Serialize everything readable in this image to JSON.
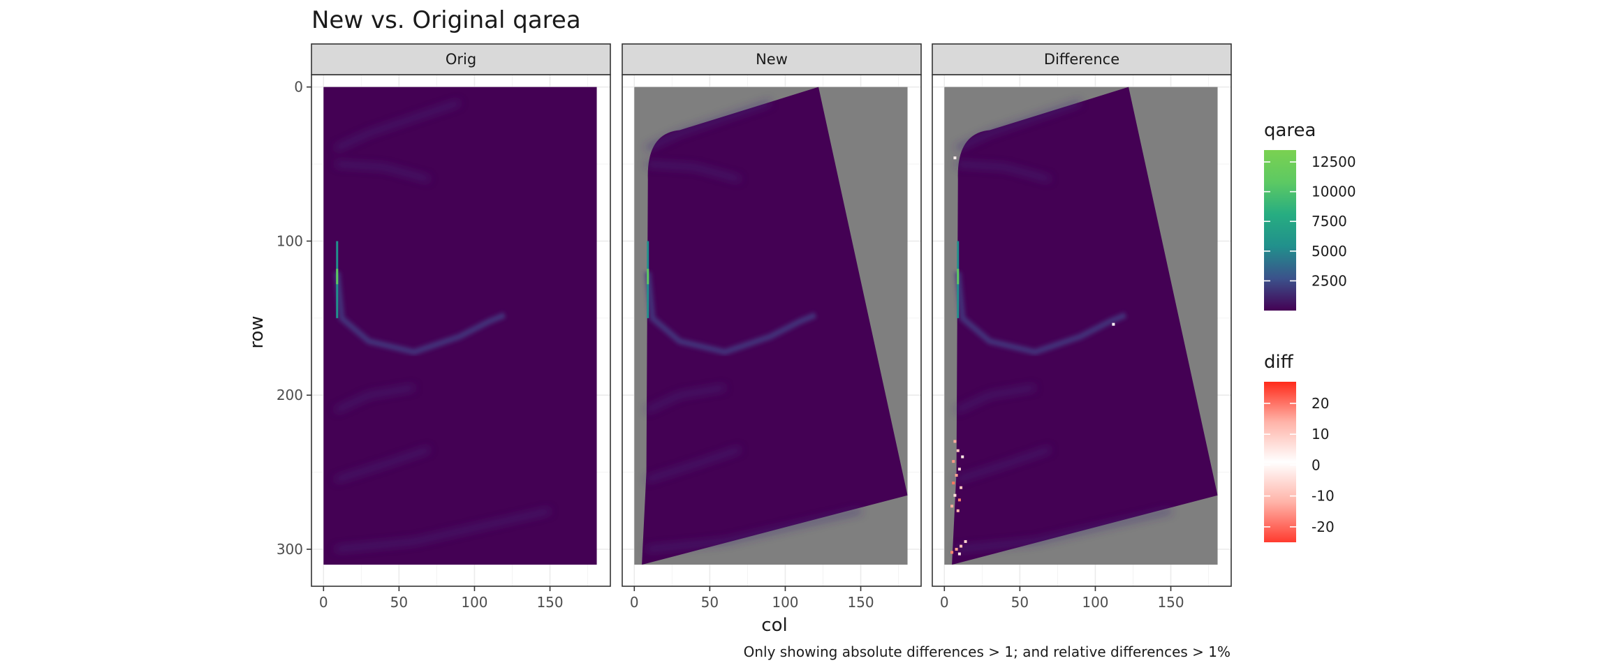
{
  "title": "New vs. Original qarea",
  "caption": "Only showing absolute differences > 1; and relative differences > 1%",
  "chart_data": {
    "type": "heatmap",
    "title": "New vs. Original qarea",
    "xlabel": "col",
    "ylabel": "row",
    "xlim": [
      -8,
      190
    ],
    "ylim": [
      -8,
      324
    ],
    "y_reversed": true,
    "x_ticks": [
      0,
      50,
      100,
      150
    ],
    "y_ticks": [
      0,
      100,
      200,
      300
    ],
    "x_tick_labels": [
      "0",
      "50",
      "100",
      "150"
    ],
    "y_tick_labels": [
      "0",
      "100",
      "200",
      "300"
    ],
    "grid": true,
    "panels": [
      {
        "label": "Orig"
      },
      {
        "label": "New"
      },
      {
        "label": "Difference"
      }
    ],
    "grid_extent": {
      "col_min": 0,
      "col_max": 181,
      "row_min": 0,
      "row_max": 310
    },
    "rotated_footprint": [
      [
        122,
        0
      ],
      [
        181,
        265
      ],
      [
        5,
        310
      ],
      [
        10,
        38
      ]
    ],
    "nodata_color": "#7f7f7f",
    "feature_curve": [
      [
        9,
        120
      ],
      [
        12,
        150
      ],
      [
        30,
        165
      ],
      [
        60,
        172
      ],
      [
        90,
        162
      ],
      [
        110,
        152
      ],
      [
        120,
        148
      ]
    ],
    "legends": [
      {
        "title": "qarea",
        "breaks": [
          12500,
          10000,
          7500,
          5000,
          2500
        ],
        "labels": [
          "12500",
          "10000",
          "7500",
          "5000",
          "2500"
        ],
        "range": [
          0,
          13500
        ],
        "colors": [
          "#440154",
          "#3b528b",
          "#21908c",
          "#27ad81",
          "#5dc963",
          "#7ad151"
        ]
      },
      {
        "title": "diff",
        "breaks": [
          20,
          10,
          0,
          -10,
          -20
        ],
        "labels": [
          "20",
          "10",
          "0",
          "-10",
          "-20"
        ],
        "range": [
          -25,
          27
        ],
        "colors": [
          "#ff3b2f",
          "#ffb3a8",
          "#ffffff",
          "#ffb3a8",
          "#ff2a1a"
        ]
      }
    ],
    "difference_points": [
      {
        "col": 7,
        "row": 230,
        "diff": 12
      },
      {
        "col": 9,
        "row": 236,
        "diff": -8
      },
      {
        "col": 6,
        "row": 243,
        "diff": 15
      },
      {
        "col": 10,
        "row": 248,
        "diff": 5
      },
      {
        "col": 8,
        "row": 252,
        "diff": -14
      },
      {
        "col": 6,
        "row": 257,
        "diff": 20
      },
      {
        "col": 11,
        "row": 260,
        "diff": 8
      },
      {
        "col": 7,
        "row": 265,
        "diff": -5
      },
      {
        "col": 10,
        "row": 268,
        "diff": 18
      },
      {
        "col": 5,
        "row": 272,
        "diff": -12
      },
      {
        "col": 12,
        "row": 240,
        "diff": 3
      },
      {
        "col": 9,
        "row": 275,
        "diff": 10
      },
      {
        "col": 14,
        "row": 295,
        "diff": 6
      },
      {
        "col": 11,
        "row": 298,
        "diff": -9
      },
      {
        "col": 8,
        "row": 300,
        "diff": 14
      },
      {
        "col": 5,
        "row": 302,
        "diff": -18
      },
      {
        "col": 10,
        "row": 303,
        "diff": 4
      },
      {
        "col": 7,
        "row": 46,
        "diff": 2
      },
      {
        "col": 112,
        "row": 154,
        "diff": 1
      }
    ]
  }
}
